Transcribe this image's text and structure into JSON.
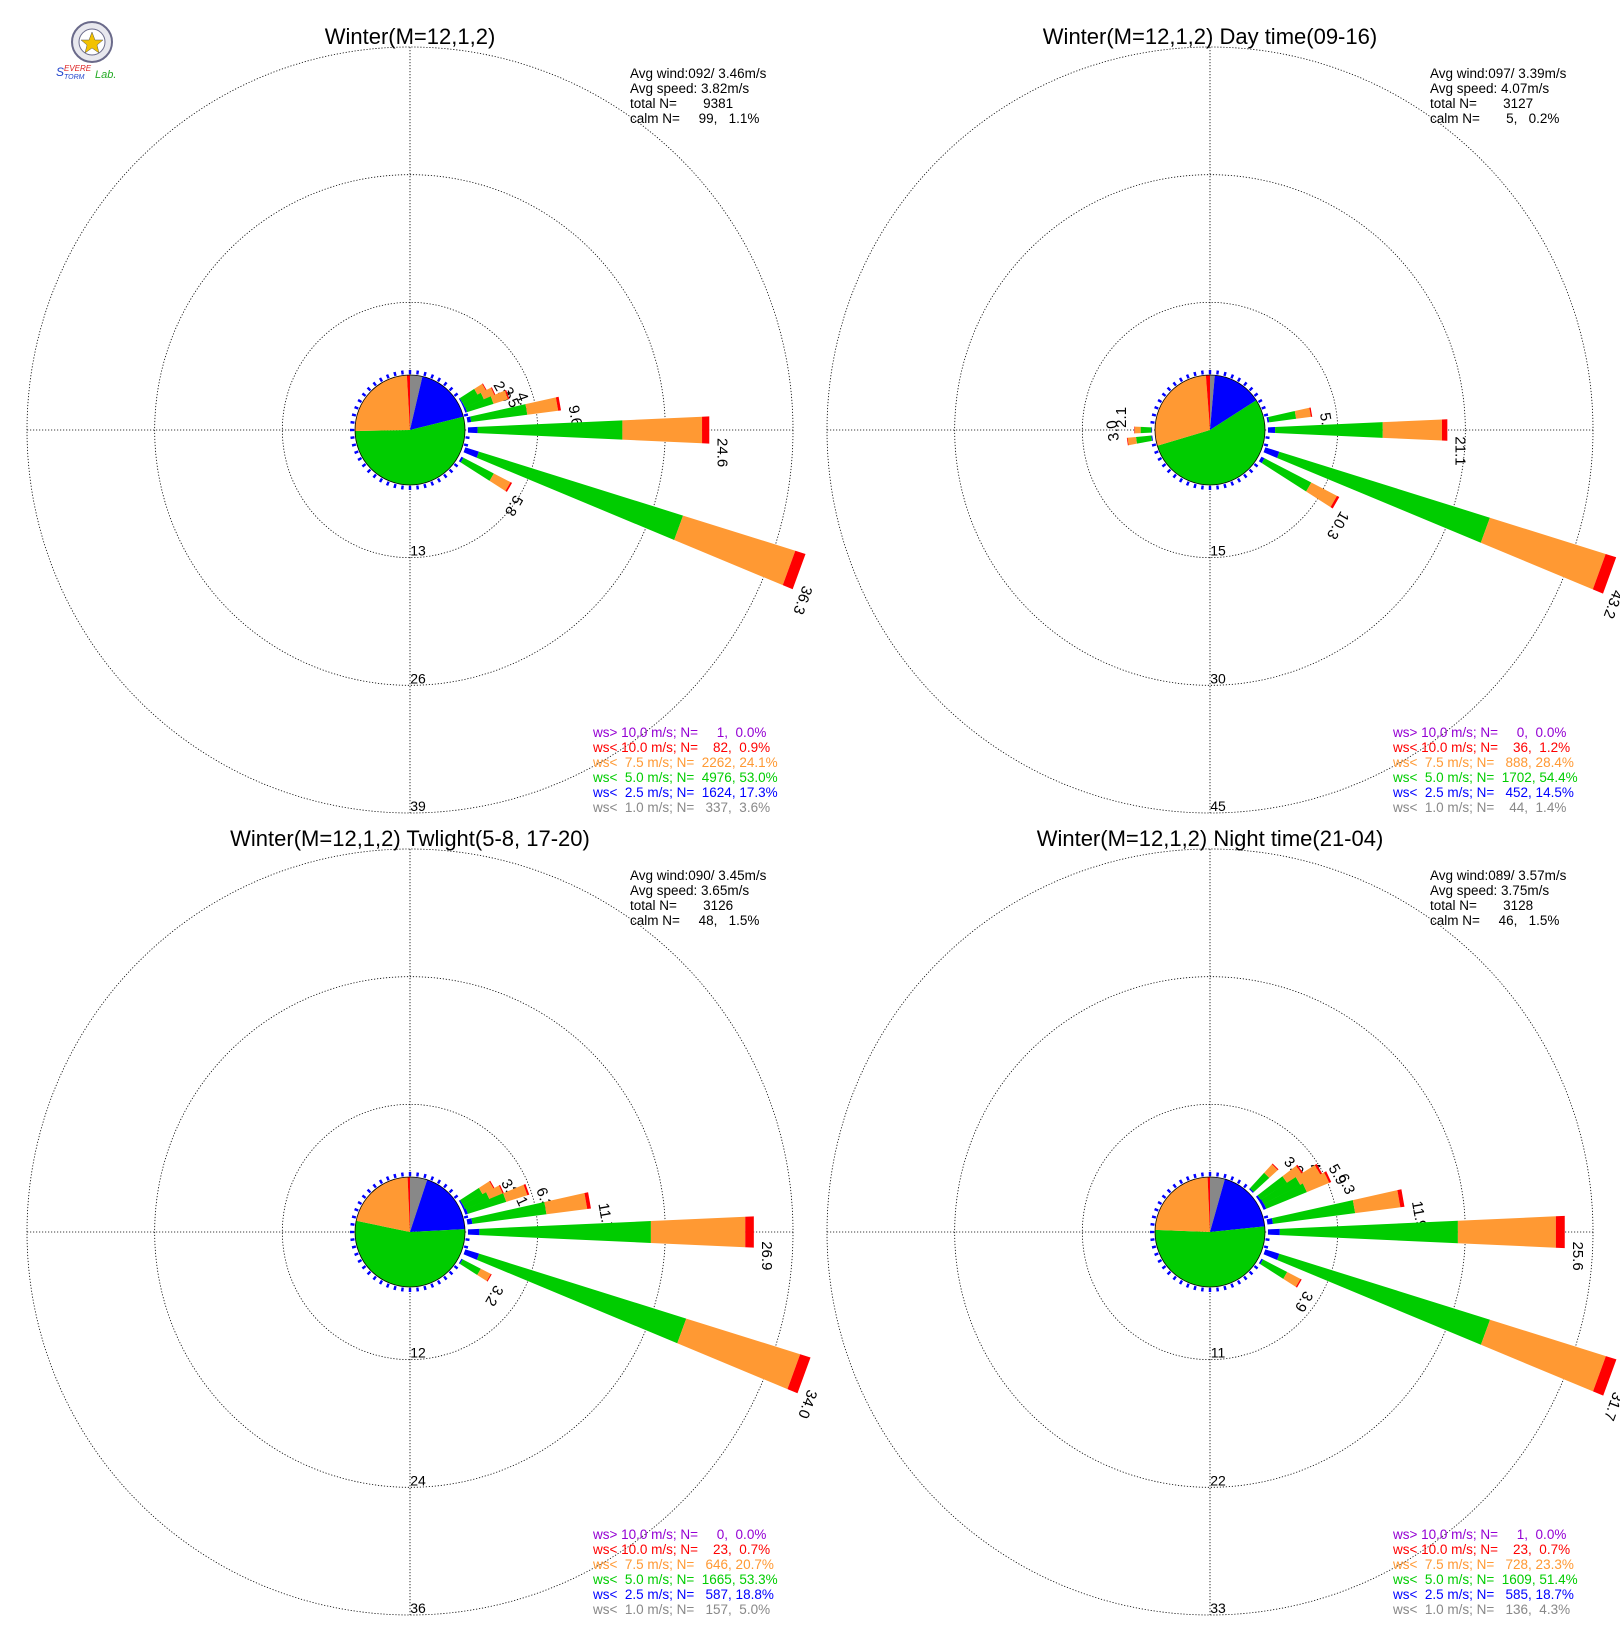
{
  "logo": {
    "lab_text": "Severe Storm Lab."
  },
  "colors": {
    "gt10": "#9400d3",
    "lt10": "#ff0000",
    "lt75": "#ff9933",
    "lt5": "#00cc00",
    "lt25": "#0000ff",
    "lt1": "#888888"
  },
  "chart_data": [
    {
      "type": "wind-rose",
      "title": "Winter(M=12,1,2)",
      "stats": [
        "Avg wind:092/ 3.46m/s",
        "Avg speed: 3.82m/s",
        "total N=       9381",
        "calm N=     99,   1.1%"
      ],
      "ring_labels": [
        "13",
        "26",
        "39"
      ],
      "r_max": 39,
      "legend": [
        "ws> 10.0 m/s; N=     1,  0.0%",
        "ws< 10.0 m/s; N=    82,  0.9%",
        "ws<  7.5 m/s; N=  2262, 24.1%",
        "ws<  5.0 m/s; N=  4976, 53.0%",
        "ws<  2.5 m/s; N=  1624, 17.3%",
        "ws<  1.0 m/s; N=   337,  3.6%"
      ],
      "pie": [
        3.6,
        17.3,
        53.0,
        24.1,
        0.9,
        0.0
      ],
      "petals": [
        {
          "dir": 60,
          "total": 2.9,
          "label": "2.9"
        },
        {
          "dir": 65,
          "total": 3.5,
          "label": "3.5"
        },
        {
          "dir": 70,
          "total": 4.7,
          "label": "4.7"
        },
        {
          "dir": 80,
          "total": 9.6,
          "label": "9.6"
        },
        {
          "dir": 90,
          "total": 24.6,
          "label": "24.6"
        },
        {
          "dir": 110,
          "total": 36.3,
          "label": "36.3"
        },
        {
          "dir": 120,
          "total": 5.8,
          "label": "5.8"
        }
      ]
    },
    {
      "type": "wind-rose",
      "title": "Winter(M=12,1,2) Day time(09-16)",
      "stats": [
        "Avg wind:097/ 3.39m/s",
        "Avg speed: 4.07m/s",
        "total N=       3127",
        "calm N=       5,   0.2%"
      ],
      "ring_labels": [
        "15",
        "30",
        "45"
      ],
      "r_max": 45,
      "legend": [
        "ws> 10.0 m/s; N=     0,  0.0%",
        "ws< 10.0 m/s; N=    36,  1.2%",
        "ws<  7.5 m/s; N=   888, 28.4%",
        "ws<  5.0 m/s; N=  1702, 54.4%",
        "ws<  2.5 m/s; N=   452, 14.5%",
        "ws<  1.0 m/s; N=    44,  1.4%"
      ],
      "pie": [
        1.4,
        14.5,
        54.4,
        28.4,
        1.2,
        0.0
      ],
      "petals": [
        {
          "dir": 80,
          "total": 5.3,
          "label": "5.3"
        },
        {
          "dir": 90,
          "total": 21.1,
          "label": "21.1"
        },
        {
          "dir": 110,
          "total": 43.2,
          "label": "43.2"
        },
        {
          "dir": 120,
          "total": 10.3,
          "label": "10.3"
        },
        {
          "dir": 262,
          "total": 3.0,
          "label": "3.0"
        },
        {
          "dir": 270,
          "total": 2.1,
          "label": "2.1"
        }
      ]
    },
    {
      "type": "wind-rose",
      "title": "Winter(M=12,1,2) Twlight(5-8, 17-20)",
      "stats": [
        "Avg wind:090/ 3.45m/s",
        "Avg speed: 3.65m/s",
        "total N=       3126",
        "calm N=     48,   1.5%"
      ],
      "ring_labels": [
        "12",
        "24",
        "36"
      ],
      "r_max": 36,
      "legend": [
        "ws> 10.0 m/s; N=     0,  0.0%",
        "ws< 10.0 m/s; N=    23,  0.7%",
        "ws<  7.5 m/s; N=   646, 20.7%",
        "ws<  5.0 m/s; N=  1665, 53.3%",
        "ws<  2.5 m/s; N=   587, 18.8%",
        "ws<  1.0 m/s; N=   157,  5.0%"
      ],
      "pie": [
        5.0,
        18.8,
        53.3,
        20.7,
        0.7,
        0.0
      ],
      "petals": [
        {
          "dir": 60,
          "total": 3.5,
          "label": "3.5"
        },
        {
          "dir": 65,
          "total": 4.1,
          "label": "4.1"
        },
        {
          "dir": 70,
          "total": 6.3,
          "label": "6.3"
        },
        {
          "dir": 80,
          "total": 11.7,
          "label": "11.7"
        },
        {
          "dir": 90,
          "total": 26.9,
          "label": "26.9"
        },
        {
          "dir": 110,
          "total": 34.0,
          "label": "34.0"
        },
        {
          "dir": 120,
          "total": 3.2,
          "label": "3.2"
        }
      ]
    },
    {
      "type": "wind-rose",
      "title": "Winter(M=12,1,2) Night time(21-04)",
      "stats": [
        "Avg wind:089/ 3.57m/s",
        "Avg speed: 3.75m/s",
        "total N=       3128",
        "calm N=     46,   1.5%"
      ],
      "ring_labels": [
        "11",
        "22",
        "33"
      ],
      "r_max": 33,
      "legend": [
        "ws> 10.0 m/s; N=     1,  0.0%",
        "ws< 10.0 m/s; N=    23,  0.7%",
        "ws<  7.5 m/s; N=   728, 23.3%",
        "ws<  5.0 m/s; N=  1609, 51.4%",
        "ws<  2.5 m/s; N=   585, 18.7%",
        "ws<  1.0 m/s; N=   136,  4.3%"
      ],
      "pie": [
        4.3,
        18.7,
        51.4,
        23.3,
        0.7,
        0.0
      ],
      "petals": [
        {
          "dir": 45,
          "total": 3.0,
          "label": "3.0"
        },
        {
          "dir": 55,
          "total": 4.5,
          "label": "4.5"
        },
        {
          "dir": 60,
          "total": 5.9,
          "label": "5.9"
        },
        {
          "dir": 65,
          "total": 6.3,
          "label": "6.3"
        },
        {
          "dir": 80,
          "total": 11.9,
          "label": "11.9"
        },
        {
          "dir": 90,
          "total": 25.6,
          "label": "25.6"
        },
        {
          "dir": 110,
          "total": 31.7,
          "label": "31.7"
        },
        {
          "dir": 120,
          "total": 3.9,
          "label": "3.9"
        }
      ]
    }
  ]
}
